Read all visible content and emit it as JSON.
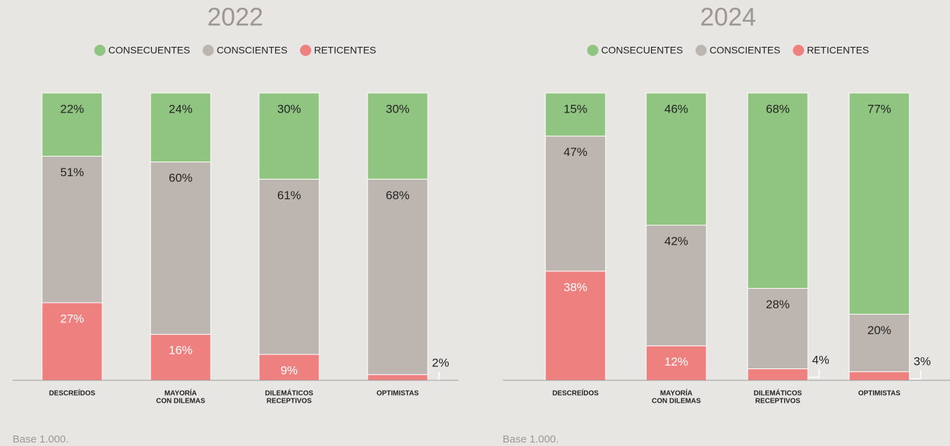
{
  "chart_data": [
    {
      "type": "stacked_bar",
      "title": "2022",
      "categories": [
        [
          "DESCREÍDOS"
        ],
        [
          "MAYORÍA",
          "CON DILEMAS"
        ],
        [
          "DILEMÁTICOS",
          "RECEPTIVOS"
        ],
        [
          "OPTIMISTAS"
        ]
      ],
      "ylim": [
        0,
        100
      ],
      "series": [
        {
          "name": "RETICENTES",
          "color": "#ee8080",
          "values": [
            27,
            16,
            9,
            2
          ],
          "value_labels": [
            "27%",
            "16%",
            "9%",
            "2%"
          ]
        },
        {
          "name": "CONSCIENTES",
          "color": "#bdb5af",
          "values": [
            51,
            60,
            61,
            68
          ],
          "value_labels": [
            "51%",
            "60%",
            "61%",
            "68%"
          ]
        },
        {
          "name": "CONSECUENTES",
          "color": "#90c581",
          "values": [
            22,
            24,
            30,
            30
          ],
          "value_labels": [
            "22%",
            "24%",
            "30%",
            "30%"
          ]
        }
      ],
      "legend_order": [
        2,
        1,
        0
      ],
      "footnote": "Base 1.000."
    },
    {
      "type": "stacked_bar",
      "title": "2024",
      "categories": [
        [
          "DESCREÍDOS"
        ],
        [
          "MAYORÍA",
          "CON DILEMAS"
        ],
        [
          "DILEMÁTICOS",
          "RECEPTIVOS"
        ],
        [
          "OPTIMISTAS"
        ]
      ],
      "ylim": [
        0,
        100
      ],
      "series": [
        {
          "name": "RETICENTES",
          "color": "#ee8080",
          "values": [
            38,
            12,
            4,
            3
          ],
          "value_labels": [
            "38%",
            "12%",
            "4%",
            "3%"
          ]
        },
        {
          "name": "CONSCIENTES",
          "color": "#bdb5af",
          "values": [
            47,
            42,
            28,
            20
          ],
          "value_labels": [
            "47%",
            "42%",
            "28%",
            "20%"
          ]
        },
        {
          "name": "CONSECUENTES",
          "color": "#90c581",
          "values": [
            15,
            46,
            68,
            77
          ],
          "value_labels": [
            "15%",
            "46%",
            "68%",
            "77%"
          ]
        }
      ],
      "legend_order": [
        2,
        1,
        0
      ],
      "footnote": "Base 1.000."
    }
  ]
}
